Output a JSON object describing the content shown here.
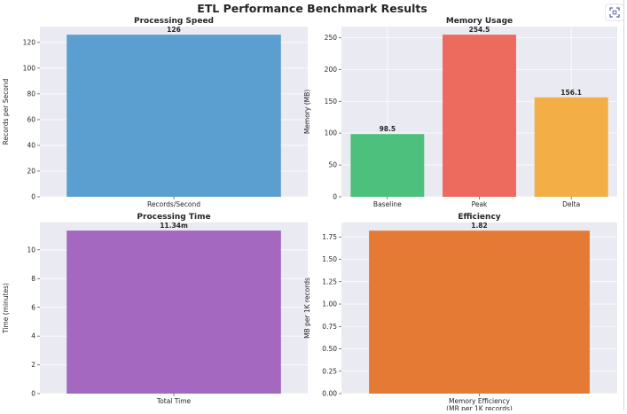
{
  "figure_title": "ETL Performance Benchmark Results",
  "expand_icon": "fullscreen-expand-icon",
  "colors": {
    "plot_bg": "#eaeaf2",
    "grid": "#ffffff",
    "text": "#262626"
  },
  "chart_data": [
    {
      "type": "bar",
      "title": "Processing Speed",
      "xlabel": "",
      "ylabel": "Records per Second",
      "categories": [
        "Records/Second"
      ],
      "values": [
        126
      ],
      "value_labels": [
        "126"
      ],
      "colors": [
        "#5b9fd0"
      ],
      "ylim": [
        0,
        132.3
      ],
      "yticks": [
        0,
        20,
        40,
        60,
        80,
        100,
        120
      ],
      "ytick_labels": [
        "0",
        "20",
        "40",
        "60",
        "80",
        "100",
        "120"
      ],
      "grid": true
    },
    {
      "type": "bar",
      "title": "Memory Usage",
      "xlabel": "",
      "ylabel": "Memory (MB)",
      "categories": [
        "Baseline",
        "Peak",
        "Delta"
      ],
      "values": [
        98.5,
        254.5,
        156.1
      ],
      "value_labels": [
        "98.5",
        "254.5",
        "156.1"
      ],
      "colors": [
        "#4cc07c",
        "#ec6b5e",
        "#f3ae46"
      ],
      "ylim": [
        0,
        267.2
      ],
      "yticks": [
        0,
        50,
        100,
        150,
        200,
        250
      ],
      "ytick_labels": [
        "0",
        "50",
        "100",
        "150",
        "200",
        "250"
      ],
      "grid": true
    },
    {
      "type": "bar",
      "title": "Processing Time",
      "xlabel": "",
      "ylabel": "Time (minutes)",
      "categories": [
        "Total Time"
      ],
      "values": [
        11.34
      ],
      "value_labels": [
        "11.34m"
      ],
      "colors": [
        "#a468c0"
      ],
      "ylim": [
        0,
        11.9
      ],
      "yticks": [
        0,
        2,
        4,
        6,
        8,
        10
      ],
      "ytick_labels": [
        "0",
        "2",
        "4",
        "6",
        "8",
        "10"
      ],
      "grid": true
    },
    {
      "type": "bar",
      "title": "Efficiency",
      "xlabel": "",
      "ylabel": "MB per 1K records",
      "categories": [
        "Memory Efficiency\n(MB per 1K records)"
      ],
      "values": [
        1.82
      ],
      "value_labels": [
        "1.82"
      ],
      "colors": [
        "#e47a33"
      ],
      "ylim": [
        0,
        1.911
      ],
      "yticks": [
        0,
        0.25,
        0.5,
        0.75,
        1.0,
        1.25,
        1.5,
        1.75
      ],
      "ytick_labels": [
        "0.00",
        "0.25",
        "0.50",
        "0.75",
        "1.00",
        "1.25",
        "1.50",
        "1.75"
      ],
      "grid": true
    }
  ]
}
